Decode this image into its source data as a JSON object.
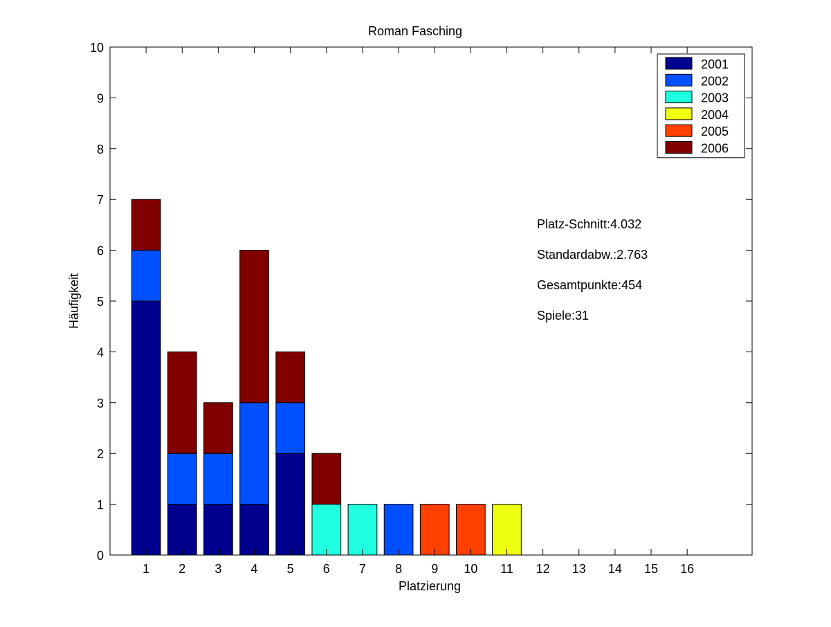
{
  "chart_data": {
    "type": "bar",
    "stacked": true,
    "title": "Roman Fasching",
    "xlabel": "Platzierung",
    "ylabel": "Häufigkeit",
    "categories": [
      "1",
      "2",
      "3",
      "4",
      "5",
      "6",
      "7",
      "8",
      "9",
      "10",
      "11",
      "12",
      "13",
      "14",
      "15",
      "16"
    ],
    "xlim": [
      0,
      17.8
    ],
    "ylim": [
      0,
      10
    ],
    "yticks": [
      0,
      1,
      2,
      3,
      4,
      5,
      6,
      7,
      8,
      9,
      10
    ],
    "grid": false,
    "legend_position": "top-right",
    "series": [
      {
        "name": "2001",
        "color": "#00008f",
        "values": [
          5,
          1,
          1,
          1,
          2,
          0,
          0,
          0,
          0,
          0,
          0,
          0,
          0,
          0,
          0,
          0
        ]
      },
      {
        "name": "2002",
        "color": "#0050ff",
        "values": [
          1,
          1,
          1,
          2,
          1,
          0,
          0,
          1,
          0,
          0,
          0,
          0,
          0,
          0,
          0,
          0
        ]
      },
      {
        "name": "2003",
        "color": "#20ffdf",
        "values": [
          0,
          0,
          0,
          0,
          0,
          1,
          1,
          0,
          0,
          0,
          0,
          0,
          0,
          0,
          0,
          0
        ]
      },
      {
        "name": "2004",
        "color": "#efff10",
        "values": [
          0,
          0,
          0,
          0,
          0,
          0,
          0,
          0,
          0,
          0,
          1,
          0,
          0,
          0,
          0,
          0
        ]
      },
      {
        "name": "2005",
        "color": "#ff4000",
        "values": [
          0,
          0,
          0,
          0,
          0,
          0,
          0,
          0,
          1,
          1,
          0,
          0,
          0,
          0,
          0,
          0
        ]
      },
      {
        "name": "2006",
        "color": "#800000",
        "values": [
          1,
          2,
          1,
          3,
          1,
          1,
          0,
          0,
          0,
          0,
          0,
          0,
          0,
          0,
          0,
          0
        ]
      }
    ],
    "annotations": [
      "Platz-Schnitt:4.032",
      "Standardabw.:2.763",
      "Gesamtpunkte:454",
      "Spiele:31"
    ]
  }
}
